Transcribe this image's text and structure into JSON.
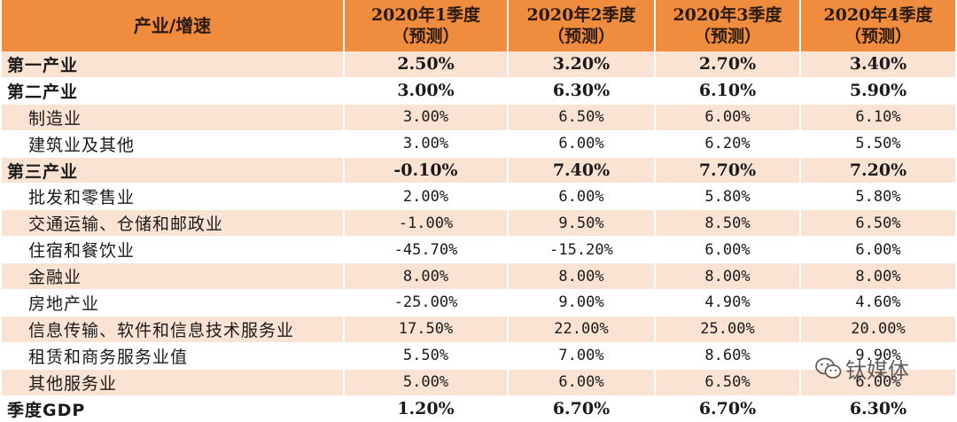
{
  "table": {
    "corner_label": "产业/增速",
    "columns": [
      {
        "line1": "2020年1季度",
        "line2": "（预测）"
      },
      {
        "line1": "2020年2季度",
        "line2": "（预测）"
      },
      {
        "line1": "2020年3季度",
        "line2": "（预测）"
      },
      {
        "line1": "2020年4季度",
        "line2": "（预测）"
      }
    ],
    "rows": [
      {
        "label": "第一产业",
        "bold": true,
        "shade": true,
        "values": [
          "2.50%",
          "3.20%",
          "2.70%",
          "3.40%"
        ]
      },
      {
        "label": "第二产业",
        "bold": true,
        "shade": false,
        "values": [
          "3.00%",
          "6.30%",
          "6.10%",
          "5.90%"
        ]
      },
      {
        "label": "制造业",
        "bold": false,
        "shade": true,
        "values": [
          "3.00%",
          "6.50%",
          "6.00%",
          "6.10%"
        ]
      },
      {
        "label": "建筑业及其他",
        "bold": false,
        "shade": false,
        "values": [
          "3.00%",
          "6.00%",
          "6.20%",
          "5.50%"
        ]
      },
      {
        "label": "第三产业",
        "bold": true,
        "shade": true,
        "values": [
          "-0.10%",
          "7.40%",
          "7.70%",
          "7.20%"
        ]
      },
      {
        "label": "批发和零售业",
        "bold": false,
        "shade": false,
        "values": [
          "2.00%",
          "6.00%",
          "5.80%",
          "5.80%"
        ]
      },
      {
        "label": "交通运输、仓储和邮政业",
        "bold": false,
        "shade": true,
        "values": [
          "-1.00%",
          "9.50%",
          "8.50%",
          "6.50%"
        ]
      },
      {
        "label": "住宿和餐饮业",
        "bold": false,
        "shade": false,
        "values": [
          "-45.70%",
          "-15.20%",
          "6.00%",
          "6.00%"
        ]
      },
      {
        "label": "金融业",
        "bold": false,
        "shade": true,
        "values": [
          "8.00%",
          "8.00%",
          "8.00%",
          "8.00%"
        ]
      },
      {
        "label": "房地产业",
        "bold": false,
        "shade": false,
        "values": [
          "-25.00%",
          "9.00%",
          "4.90%",
          "4.60%"
        ]
      },
      {
        "label": "信息传输、软件和信息技术服务业",
        "bold": false,
        "shade": true,
        "values": [
          "17.50%",
          "22.00%",
          "25.00%",
          "20.00%"
        ]
      },
      {
        "label": "租赁和商务服务业值",
        "bold": false,
        "shade": false,
        "values": [
          "5.50%",
          "7.00%",
          "8.60%",
          "9.90%"
        ]
      },
      {
        "label": "其他服务业",
        "bold": false,
        "shade": true,
        "values": [
          "5.00%",
          "6.00%",
          "6.50%",
          "6.00%"
        ]
      },
      {
        "label": "季度GDP",
        "bold": true,
        "shade": false,
        "values": [
          "1.20%",
          "6.70%",
          "6.70%",
          "6.30%"
        ]
      }
    ]
  },
  "watermark": {
    "text": "钛媒体",
    "icon": "wechat-icon"
  },
  "colors": {
    "header": "#ef8c3d",
    "shade": "#fbe3d3"
  }
}
